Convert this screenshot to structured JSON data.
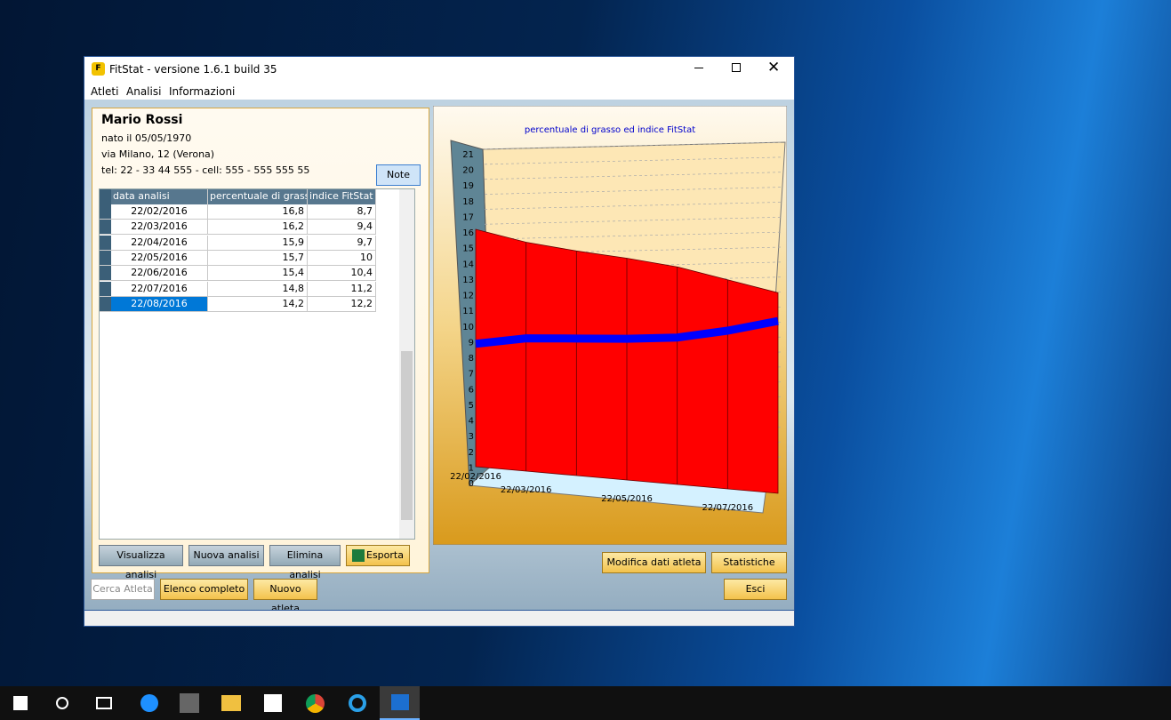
{
  "window": {
    "title": "FitStat - versione 1.6.1 build 35",
    "menu": [
      "Atleti",
      "Analisi",
      "Informazioni"
    ]
  },
  "athlete": {
    "name": "Mario Rossi",
    "born": "nato il 05/05/1970",
    "address": "via Milano, 12 (Verona)",
    "phone": "tel: 22 - 33 44 555 - cell: 555 - 555 555 55",
    "note_button": "Note"
  },
  "table": {
    "columns": [
      "data analisi",
      "percentuale di grasso",
      "indice FitStat"
    ],
    "rows": [
      [
        "22/02/2016",
        "16,8",
        "8,7"
      ],
      [
        "22/03/2016",
        "16,2",
        "9,4"
      ],
      [
        "22/04/2016",
        "15,9",
        "9,7"
      ],
      [
        "22/05/2016",
        "15,7",
        "10"
      ],
      [
        "22/06/2016",
        "15,4",
        "10,4"
      ],
      [
        "22/07/2016",
        "14,8",
        "11,2"
      ],
      [
        "22/08/2016",
        "14,2",
        "12,2"
      ]
    ],
    "selected_row": 6
  },
  "buttons": {
    "panel": [
      "Visualizza analisi",
      "Nuova analisi",
      "Elimina analisi",
      "Esporta"
    ],
    "bottom": [
      "Cerca Atleta",
      "Elenco completo",
      "Nuovo atleta"
    ],
    "right": [
      "Modifica dati atleta",
      "Statistiche",
      "Esci"
    ]
  },
  "chart": {
    "type": "area3d",
    "title": "percentuale di grasso ed indice FitStat",
    "categories": [
      "22/02/2016",
      "22/03/2016",
      null,
      "22/05/2016",
      null,
      "22/07/2016",
      null
    ],
    "ylim": [
      0,
      21
    ],
    "yticks": [
      0,
      1,
      2,
      3,
      4,
      5,
      6,
      7,
      8,
      9,
      10,
      11,
      12,
      13,
      14,
      15,
      16,
      17,
      18,
      19,
      20,
      21
    ],
    "series": [
      {
        "color": "#ff0000",
        "values": [
          16.8,
          16.2,
          15.9,
          15.7,
          15.4,
          14.8,
          14.2
        ]
      },
      {
        "color": "#0000ff",
        "values": [
          8.7,
          9.4,
          9.7,
          10,
          10.4,
          11.2,
          12.2
        ]
      }
    ]
  }
}
